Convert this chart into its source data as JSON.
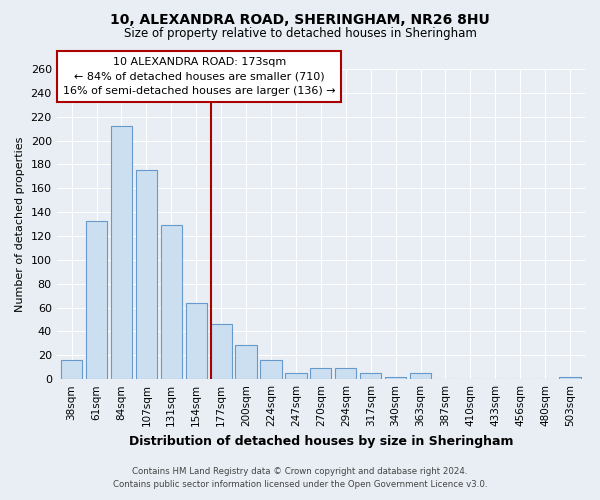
{
  "title": "10, ALEXANDRA ROAD, SHERINGHAM, NR26 8HU",
  "subtitle": "Size of property relative to detached houses in Sheringham",
  "xlabel": "Distribution of detached houses by size in Sheringham",
  "ylabel": "Number of detached properties",
  "bar_labels": [
    "38sqm",
    "61sqm",
    "84sqm",
    "107sqm",
    "131sqm",
    "154sqm",
    "177sqm",
    "200sqm",
    "224sqm",
    "247sqm",
    "270sqm",
    "294sqm",
    "317sqm",
    "340sqm",
    "363sqm",
    "387sqm",
    "410sqm",
    "433sqm",
    "456sqm",
    "480sqm",
    "503sqm"
  ],
  "bar_values": [
    16,
    133,
    212,
    175,
    129,
    64,
    46,
    29,
    16,
    5,
    9,
    9,
    5,
    2,
    5,
    0,
    0,
    0,
    0,
    0,
    2
  ],
  "bar_color": "#ccdff0",
  "bar_edge_color": "#6699cc",
  "vline_x_index": 6,
  "vline_color": "#aa0000",
  "annotation_title": "10 ALEXANDRA ROAD: 173sqm",
  "annotation_line1": "← 84% of detached houses are smaller (710)",
  "annotation_line2": "16% of semi-detached houses are larger (136) →",
  "annotation_box_color": "#ffffff",
  "annotation_box_edge": "#aa0000",
  "ylim": [
    0,
    260
  ],
  "yticks": [
    0,
    20,
    40,
    60,
    80,
    100,
    120,
    140,
    160,
    180,
    200,
    220,
    240,
    260
  ],
  "footer_line1": "Contains HM Land Registry data © Crown copyright and database right 2024.",
  "footer_line2": "Contains public sector information licensed under the Open Government Licence v3.0.",
  "bg_color": "#e8eef4"
}
